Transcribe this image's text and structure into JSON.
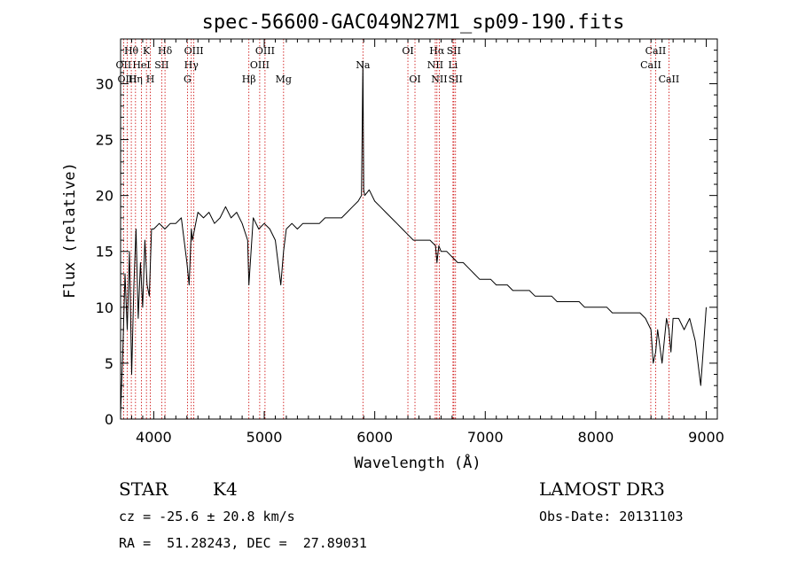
{
  "chart_data": {
    "type": "line",
    "title": "spec-56600-GAC049N27M1_sp09-190.fits",
    "xlabel": "Wavelength (Å)",
    "ylabel": "Flux (relative)",
    "xlim": [
      3700,
      9100
    ],
    "ylim": [
      0,
      34
    ],
    "xticks": [
      4000,
      5000,
      6000,
      7000,
      8000,
      9000
    ],
    "yticks": [
      0,
      5,
      10,
      15,
      20,
      25,
      30
    ],
    "line_color": "#000000",
    "marker_color": "#cc0000",
    "series": [
      {
        "name": "spectrum",
        "x": [
          3700,
          3720,
          3740,
          3760,
          3780,
          3800,
          3820,
          3840,
          3860,
          3880,
          3900,
          3920,
          3940,
          3960,
          3980,
          4000,
          4050,
          4100,
          4150,
          4200,
          4250,
          4300,
          4320,
          4340,
          4350,
          4400,
          4450,
          4500,
          4550,
          4600,
          4650,
          4700,
          4750,
          4800,
          4850,
          4861,
          4900,
          4950,
          5000,
          5050,
          5100,
          5150,
          5175,
          5200,
          5250,
          5300,
          5350,
          5400,
          5450,
          5500,
          5550,
          5600,
          5650,
          5700,
          5750,
          5800,
          5850,
          5880,
          5893,
          5900,
          5910,
          5950,
          6000,
          6050,
          6100,
          6150,
          6200,
          6250,
          6300,
          6350,
          6400,
          6450,
          6500,
          6550,
          6563,
          6580,
          6600,
          6650,
          6700,
          6750,
          6800,
          6850,
          6900,
          6950,
          7000,
          7050,
          7100,
          7150,
          7200,
          7250,
          7300,
          7350,
          7400,
          7450,
          7500,
          7550,
          7600,
          7650,
          7700,
          7750,
          7800,
          7850,
          7900,
          7950,
          8000,
          8050,
          8100,
          8150,
          8200,
          8250,
          8300,
          8350,
          8400,
          8450,
          8500,
          8520,
          8542,
          8560,
          8600,
          8640,
          8662,
          8680,
          8700,
          8750,
          8800,
          8850,
          8900,
          8950,
          9000
        ],
        "y": [
          0.5,
          6,
          13,
          8,
          15,
          4,
          12,
          17,
          9,
          14,
          10,
          16,
          12,
          11,
          17,
          17,
          17.5,
          17,
          17.5,
          17.5,
          18,
          14,
          12,
          17,
          16,
          18.5,
          18,
          18.5,
          17.5,
          18,
          19,
          18,
          18.5,
          17.5,
          16,
          12,
          18,
          17,
          17.5,
          17,
          16,
          12,
          15,
          17,
          17.5,
          17,
          17.5,
          17.5,
          17.5,
          17.5,
          18,
          18,
          18,
          18,
          18.5,
          19,
          19.5,
          20,
          32,
          20.5,
          20,
          20.5,
          19.5,
          19,
          18.5,
          18,
          17.5,
          17,
          16.5,
          16,
          16,
          16,
          16,
          15.5,
          14,
          15.5,
          15,
          15,
          14.5,
          14,
          14,
          13.5,
          13,
          12.5,
          12.5,
          12.5,
          12,
          12,
          12,
          11.5,
          11.5,
          11.5,
          11.5,
          11,
          11,
          11,
          11,
          10.5,
          10.5,
          10.5,
          10.5,
          10.5,
          10,
          10,
          10,
          10,
          10,
          9.5,
          9.5,
          9.5,
          9.5,
          9.5,
          9.5,
          9,
          8,
          5,
          6,
          8,
          5,
          9,
          8,
          6,
          9,
          9,
          8,
          9,
          7,
          3,
          10
        ]
      }
    ],
    "line_markers": [
      {
        "label": "Hθ",
        "wavelength": 3797,
        "row": 0
      },
      {
        "label": "OII",
        "wavelength": 3727,
        "row": 1
      },
      {
        "label": "OIII",
        "wavelength": 3760,
        "row": 2
      },
      {
        "label": "K",
        "wavelength": 3934,
        "row": 0
      },
      {
        "label": "HeI",
        "wavelength": 3889,
        "row": 1
      },
      {
        "label": "Hη",
        "wavelength": 3835,
        "row": 2
      },
      {
        "label": "H",
        "wavelength": 3969,
        "row": 2
      },
      {
        "label": "SII",
        "wavelength": 4072,
        "row": 1
      },
      {
        "label": "Hδ",
        "wavelength": 4102,
        "row": 0
      },
      {
        "label": "OIII",
        "wavelength": 4363,
        "row": 0
      },
      {
        "label": "Hγ",
        "wavelength": 4340,
        "row": 1
      },
      {
        "label": "G",
        "wavelength": 4305,
        "row": 2
      },
      {
        "label": "Hβ",
        "wavelength": 4861,
        "row": 2
      },
      {
        "label": "OIII",
        "wavelength": 5007,
        "row": 0
      },
      {
        "label": "OIII",
        "wavelength": 4959,
        "row": 1
      },
      {
        "label": "Mg",
        "wavelength": 5175,
        "row": 2
      },
      {
        "label": "Na",
        "wavelength": 5893,
        "row": 1
      },
      {
        "label": "OI",
        "wavelength": 6300,
        "row": 0
      },
      {
        "label": "OI",
        "wavelength": 6364,
        "row": 2
      },
      {
        "label": "Hα",
        "wavelength": 6563,
        "row": 0
      },
      {
        "label": "NII",
        "wavelength": 6548,
        "row": 1
      },
      {
        "label": "NII",
        "wavelength": 6584,
        "row": 2
      },
      {
        "label": "SII",
        "wavelength": 6716,
        "row": 0
      },
      {
        "label": "Li",
        "wavelength": 6708,
        "row": 1
      },
      {
        "label": "SII",
        "wavelength": 6731,
        "row": 2
      },
      {
        "label": "CaII",
        "wavelength": 8542,
        "row": 0
      },
      {
        "label": "CaII",
        "wavelength": 8498,
        "row": 1
      },
      {
        "label": "CaII",
        "wavelength": 8662,
        "row": 2
      }
    ]
  },
  "info": {
    "class": "STAR",
    "subclass": "K4",
    "survey": "LAMOST DR3",
    "cz": "cz = -25.6 ± 20.8 km/s",
    "obs_date": "Obs-Date: 20131103",
    "coords": "RA =  51.28243, DEC =  27.89031"
  }
}
